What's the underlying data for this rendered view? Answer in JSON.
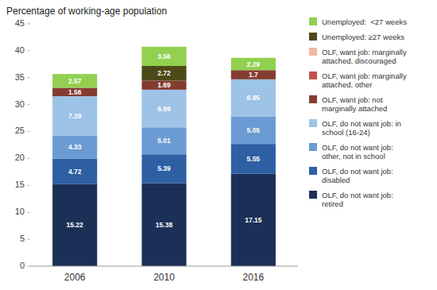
{
  "chart_data": {
    "type": "bar",
    "stacked": true,
    "title": "Percentage of working-age population",
    "categories": [
      "2006",
      "2010",
      "2016"
    ],
    "series": [
      {
        "name": "OLF, do not want job:\nretired",
        "color": "#1c3057",
        "values": [
          15.22,
          15.38,
          17.15
        ]
      },
      {
        "name": "OLF, do not want job:\ndisabled",
        "color": "#2e5fa3",
        "values": [
          4.72,
          5.39,
          5.55
        ]
      },
      {
        "name": "OLF, do not want job:\nother, not in school",
        "color": "#6b9bd2",
        "values": [
          4.33,
          5.01,
          5.05
        ]
      },
      {
        "name": "OLF, do not want job: in\nschool (16-24)",
        "color": "#9dc3e6",
        "values": [
          7.29,
          6.99,
          6.95
        ]
      },
      {
        "name": "OLF, want job: not\nmarginally attached",
        "color": "#843c30",
        "values": [
          1.56,
          1.69,
          1.7
        ]
      },
      {
        "name": "OLF, want job: marginally\nattached, other",
        "color": "#c0504d",
        "values": [
          0.0,
          0.0,
          0.0
        ]
      },
      {
        "name": "OLF, want job: marginally\nattached, discouraged",
        "color": "#f4b8a6",
        "values": [
          0.0,
          0.0,
          0.0
        ]
      },
      {
        "name": "Unemployed: ≥27 weeks",
        "color": "#4d4a1a",
        "values": [
          0.0,
          2.72,
          0.0
        ]
      },
      {
        "name": "Unemployed:  <27 weeks",
        "color": "#92d050",
        "values": [
          2.57,
          3.56,
          2.29
        ]
      }
    ],
    "ylim": [
      0,
      45
    ],
    "yticks": [
      0,
      5,
      10,
      15,
      20,
      25,
      30,
      35,
      40,
      45
    ],
    "grid": false,
    "legend": "right",
    "data_labels": true
  }
}
